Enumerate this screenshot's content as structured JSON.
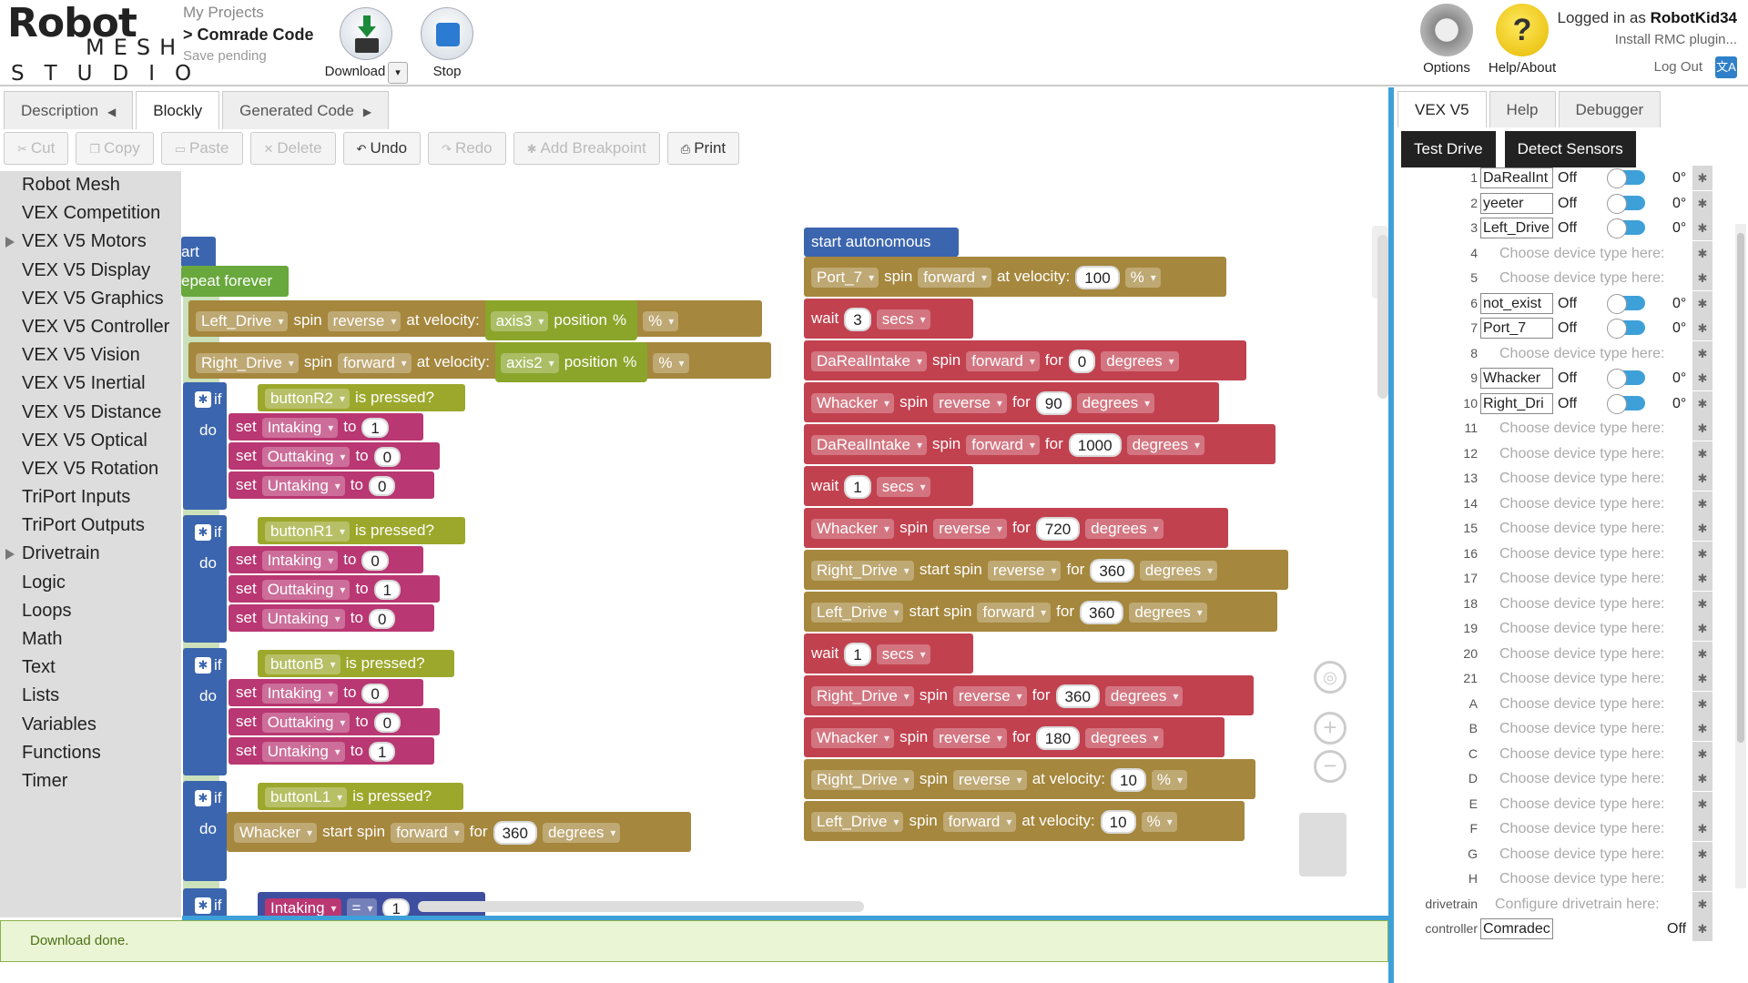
{
  "header": {
    "logo_robot": "Robot",
    "logo_mesh": "MESH",
    "logo_studio": "STUDIO",
    "projects_link": "My Projects",
    "project_name": "> Comrade Code",
    "save_status": "Save pending",
    "download_label": "Download",
    "stop_label": "Stop",
    "options_label": "Options",
    "help_label": "Help/About",
    "logged_in_prefix": "Logged in as",
    "username": "RobotKid34",
    "install_plugin": "Install RMC plugin...",
    "logout": "Log Out"
  },
  "tabs": [
    {
      "label": "Description"
    },
    {
      "label": "Blockly"
    },
    {
      "label": "Generated Code"
    }
  ],
  "toolbar": {
    "cut": "Cut",
    "copy": "Copy",
    "paste": "Paste",
    "delete": "Delete",
    "undo": "Undo",
    "redo": "Redo",
    "add_breakpoint": "Add Breakpoint",
    "print": "Print"
  },
  "toolbox": [
    "Robot Mesh",
    "VEX Competition",
    "VEX V5 Motors",
    "VEX V5 Display",
    "VEX V5 Graphics",
    "VEX V5 Controller",
    "VEX V5 Vision",
    "VEX V5 Inertial",
    "VEX V5 Distance",
    "VEX V5 Optical",
    "VEX V5 Rotation",
    "TriPort Inputs",
    "TriPort Outputs",
    "Drivetrain",
    "Logic",
    "Loops",
    "Math",
    "Text",
    "Lists",
    "Variables",
    "Functions",
    "Timer"
  ],
  "blocks": {
    "start_label": "art",
    "repeat_label": "epeat forever",
    "left_drive": "Left_Drive",
    "right_drive": "Right_Drive",
    "spin": "spin",
    "start_spin": "start spin",
    "reverse": "reverse",
    "forward": "forward",
    "at_velocity": "at velocity:",
    "axis3": "axis3",
    "axis2": "axis2",
    "position": "position",
    "pct": "%",
    "if": "if",
    "do": "do",
    "set": "set",
    "to": "to",
    "for": "for",
    "is_pressed": "is pressed?",
    "button_r2": "buttonR2",
    "button_r1": "buttonR1",
    "button_b": "buttonB",
    "button_l1": "buttonL1",
    "intaking": "Intaking",
    "outtaking": "Outtaking",
    "untaking": "Untaking",
    "whacker": "Whacker",
    "eq": "=",
    "degrees": "degrees",
    "secs": "secs",
    "wait": "wait",
    "start_autonomous": "start autonomous",
    "port7": "Port_7",
    "dareal": "DaRealIntake",
    "v0": "0",
    "v1": "1",
    "v3": "3",
    "v10": "10",
    "v90": "90",
    "v100": "100",
    "v180": "180",
    "v360": "360",
    "v720": "720",
    "v1000": "1000"
  },
  "status_message": "Download done.",
  "right_tabs": [
    {
      "label": "VEX V5"
    },
    {
      "label": "Help"
    },
    {
      "label": "Debugger"
    }
  ],
  "test_drive": "Test Drive",
  "detect_sensors": "Detect Sensors",
  "choose_text": "Choose device type here:",
  "configure_drivetrain": "Configure drivetrain here:",
  "ports": {
    "p1": {
      "num": "1",
      "name": "DaRealInt",
      "state": "Off",
      "deg": "0°"
    },
    "p2": {
      "num": "2",
      "name": "yeeter",
      "state": "Off",
      "deg": "0°"
    },
    "p3": {
      "num": "3",
      "name": "Left_Drive",
      "state": "Off",
      "deg": "0°"
    },
    "p4": {
      "num": "4"
    },
    "p5": {
      "num": "5"
    },
    "p6": {
      "num": "6",
      "name": "not_exist",
      "state": "Off",
      "deg": "0°"
    },
    "p7": {
      "num": "7",
      "name": "Port_7",
      "state": "Off",
      "deg": "0°"
    },
    "p8": {
      "num": "8"
    },
    "p9": {
      "num": "9",
      "name": "Whacker",
      "state": "Off",
      "deg": "0°"
    },
    "p10": {
      "num": "10",
      "name": "Right_Dri",
      "state": "Off",
      "deg": "0°"
    },
    "p11": {
      "num": "11"
    },
    "p12": {
      "num": "12"
    },
    "p13": {
      "num": "13"
    },
    "p14": {
      "num": "14"
    },
    "p15": {
      "num": "15"
    },
    "p16": {
      "num": "16"
    },
    "p17": {
      "num": "17"
    },
    "p18": {
      "num": "18"
    },
    "p19": {
      "num": "19"
    },
    "p20": {
      "num": "20"
    },
    "p21": {
      "num": "21"
    },
    "pA": {
      "num": "A"
    },
    "pB": {
      "num": "B"
    },
    "pC": {
      "num": "C"
    },
    "pD": {
      "num": "D"
    },
    "pE": {
      "num": "E"
    },
    "pF": {
      "num": "F"
    },
    "pG": {
      "num": "G"
    },
    "pH": {
      "num": "H"
    },
    "drivetrain": {
      "num": "drivetrain"
    },
    "controller": {
      "num": "controller",
      "name": "Comradec",
      "state": "Off"
    }
  }
}
